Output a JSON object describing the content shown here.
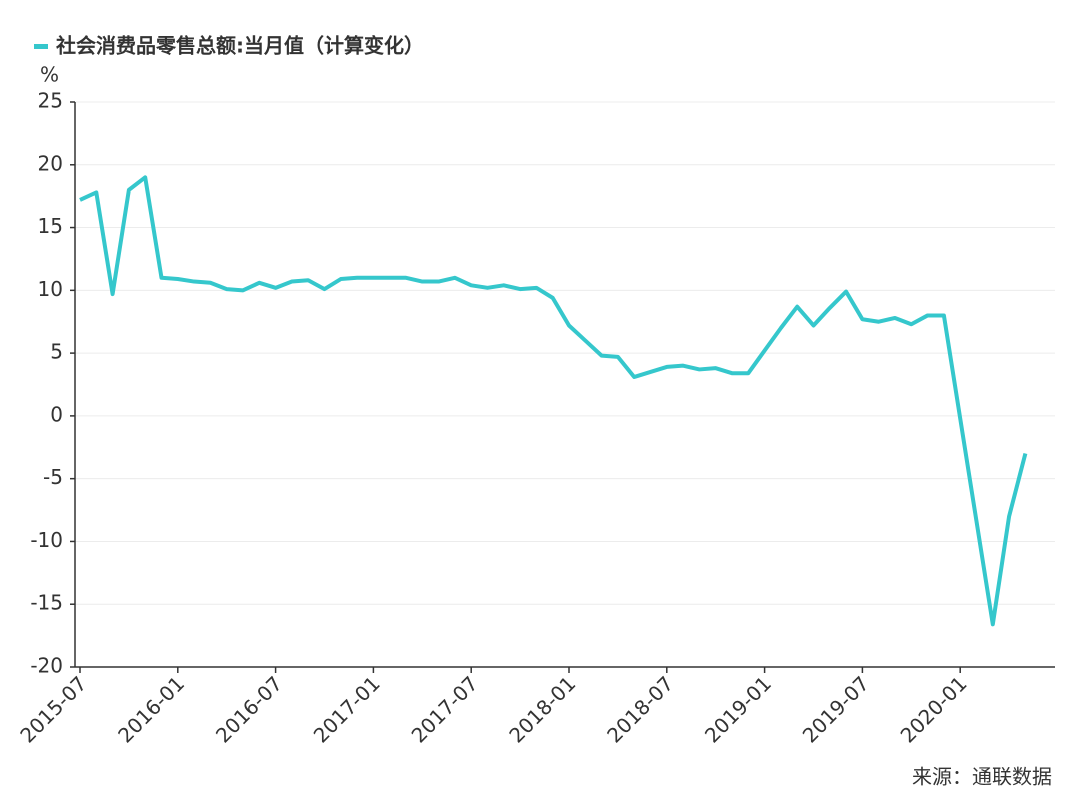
{
  "chart_data": {
    "type": "line",
    "title": "社会消费品零售总额:当月值（计算变化）",
    "y_label": "%",
    "source": "来源：通联数据",
    "categories": [
      "2015-07",
      null,
      null,
      null,
      null,
      null,
      "2016-01",
      null,
      null,
      null,
      null,
      null,
      "2016-07",
      null,
      null,
      null,
      null,
      null,
      "2017-01",
      null,
      null,
      null,
      null,
      null,
      "2017-07",
      null,
      null,
      null,
      null,
      null,
      "2018-01",
      null,
      null,
      null,
      null,
      null,
      "2018-07",
      null,
      null,
      null,
      null,
      null,
      "2019-01",
      null,
      null,
      null,
      null,
      null,
      "2019-07",
      null,
      null,
      null,
      null,
      null,
      "2020-01",
      null,
      null,
      null,
      null
    ],
    "series": [
      {
        "name": "社会消费品零售总额:当月值（计算变化）",
        "color": "#35c7cc",
        "values": [
          17.2,
          17.8,
          9.7,
          18.0,
          19.0,
          11.0,
          10.9,
          10.7,
          10.6,
          10.1,
          10.0,
          10.6,
          10.2,
          10.7,
          10.8,
          10.1,
          10.9,
          11.0,
          11.0,
          11.0,
          11.0,
          10.7,
          10.7,
          11.0,
          10.4,
          10.2,
          10.4,
          10.1,
          10.2,
          9.4,
          7.2,
          6.0,
          4.8,
          4.7,
          3.1,
          3.5,
          3.9,
          4.0,
          3.7,
          3.8,
          3.4,
          3.4,
          5.2,
          7.0,
          8.7,
          7.2,
          8.6,
          9.9,
          7.7,
          7.5,
          7.8,
          7.3,
          8.0,
          8.0,
          -0.2,
          -8.4,
          -16.6,
          -8.0,
          -3.0
        ]
      }
    ],
    "ylim": [
      -20,
      25
    ],
    "yticks": [
      -20,
      -15,
      -10,
      -5,
      0,
      5,
      10,
      15,
      20,
      25
    ],
    "grid": true
  }
}
